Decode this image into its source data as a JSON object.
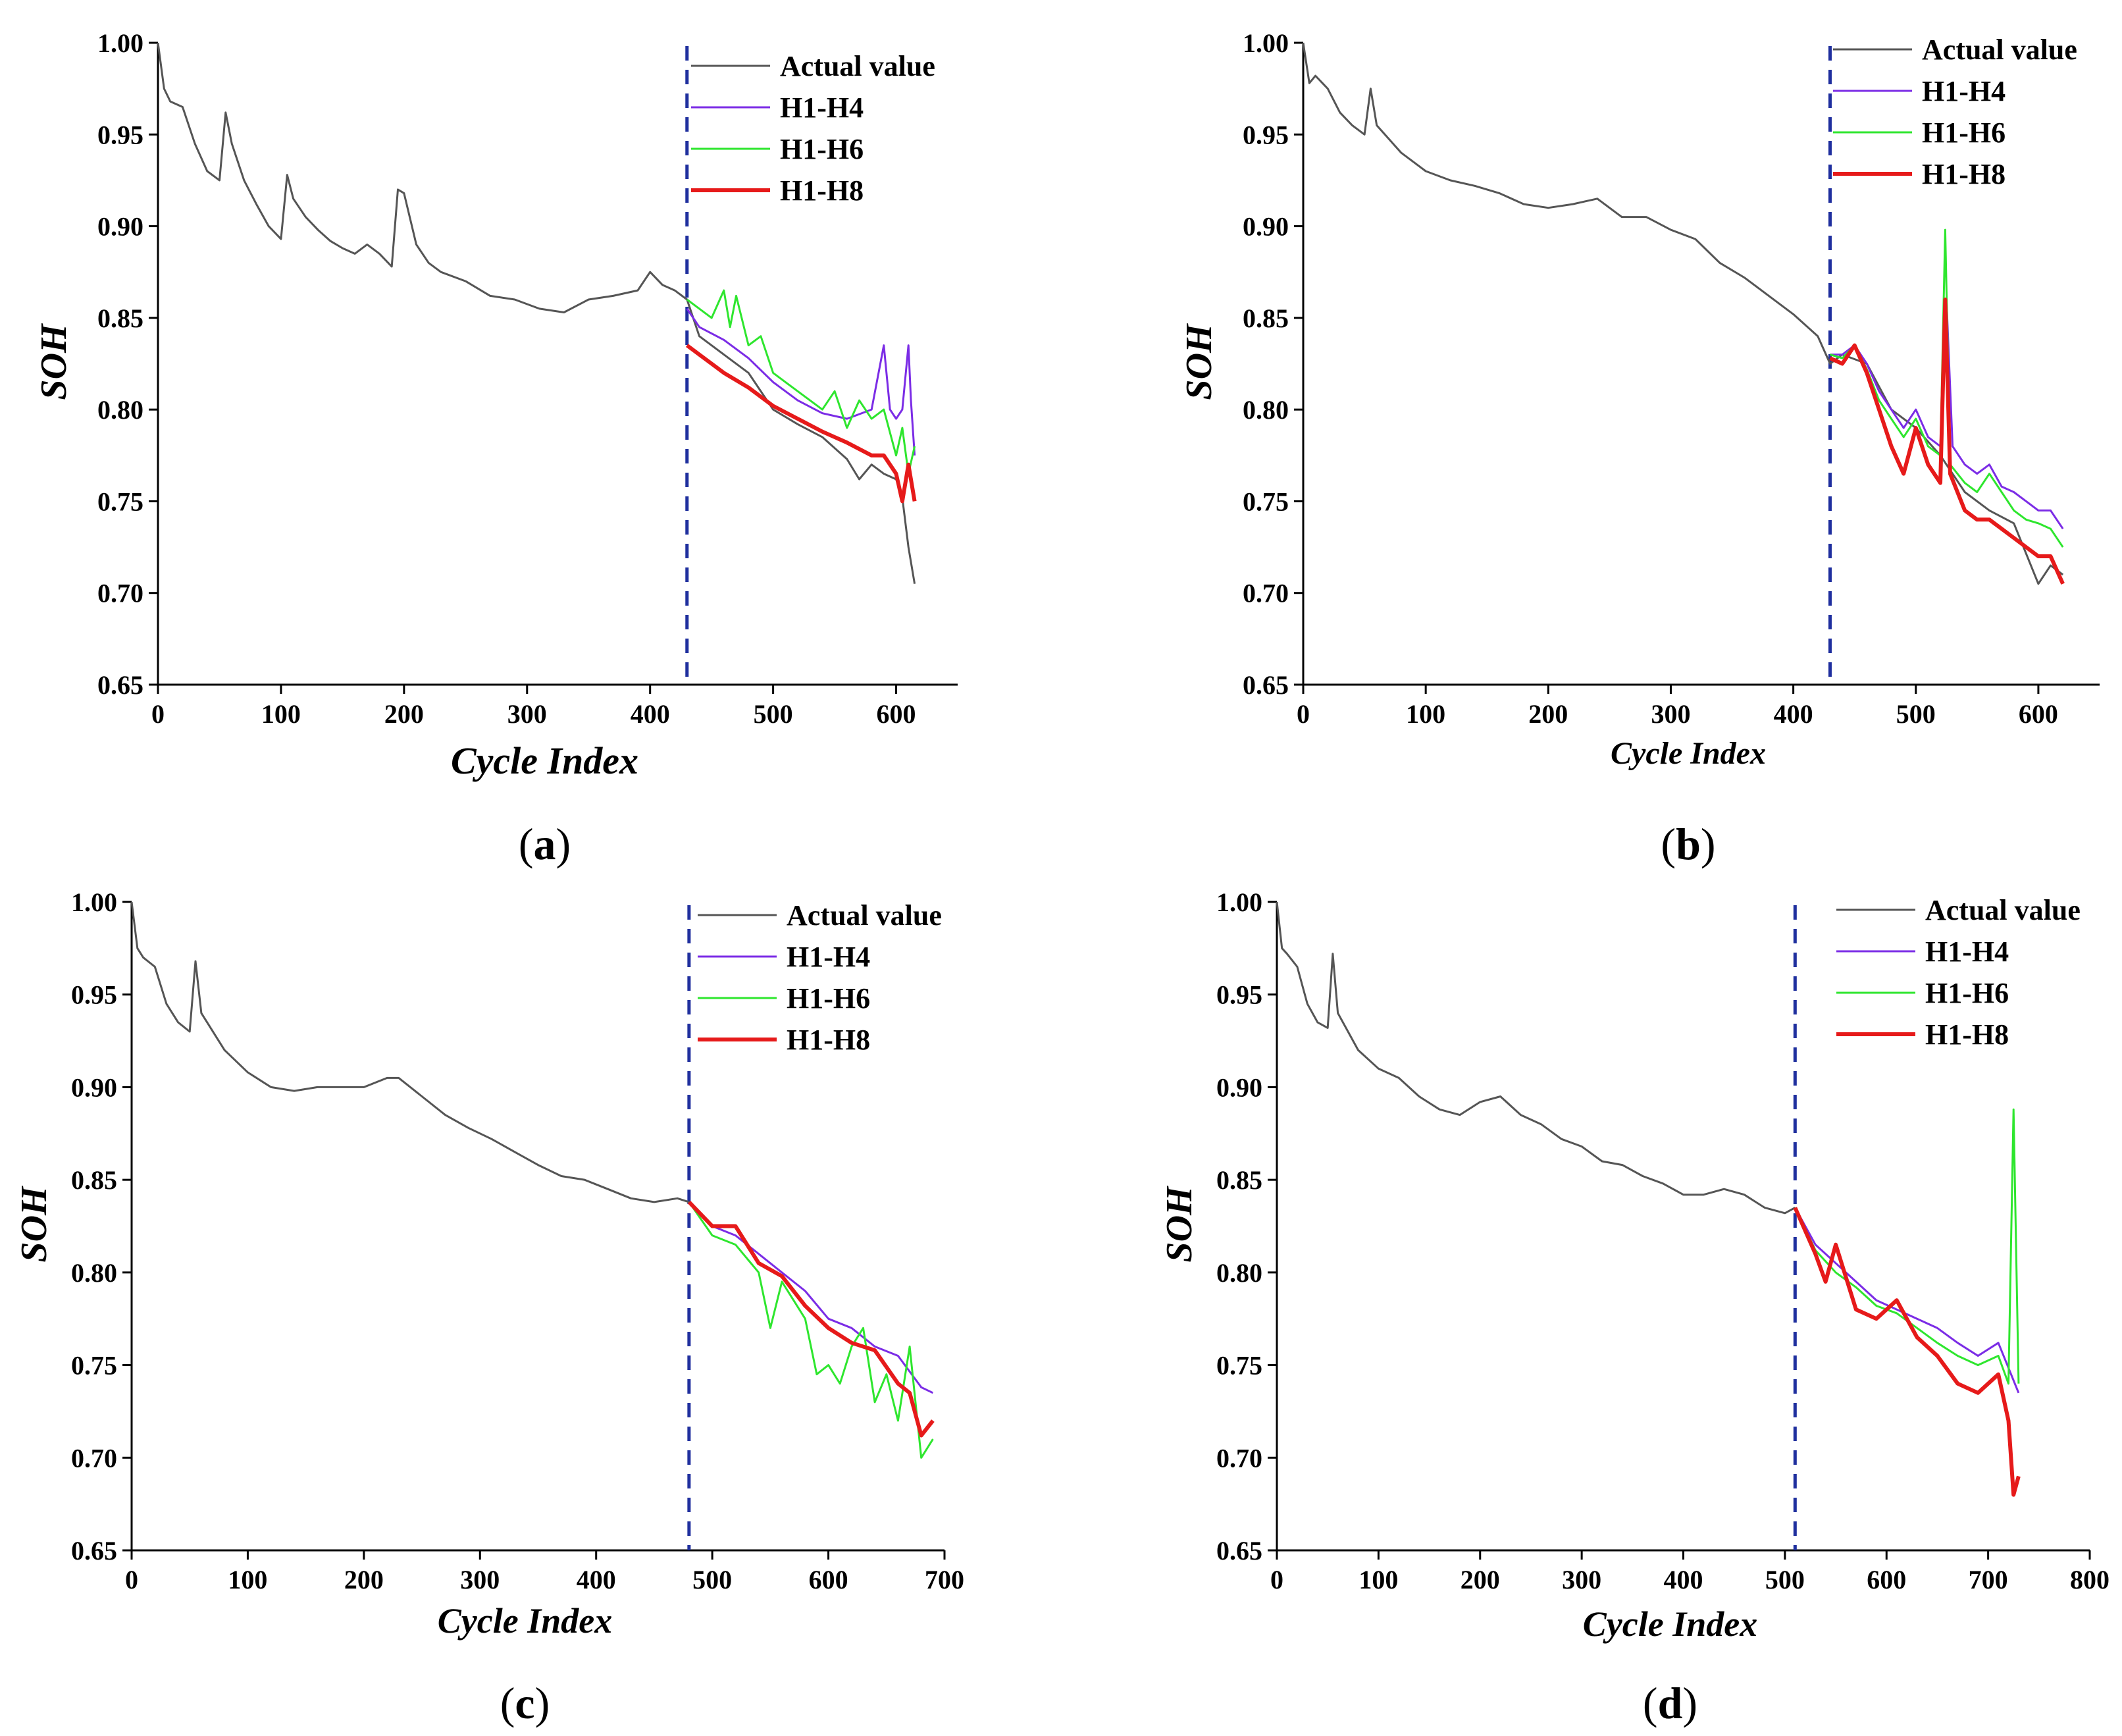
{
  "colors": {
    "actual": "#555555",
    "h1_h4": "#7B2CE6",
    "h1_h6": "#2EE62E",
    "h1_h8": "#E61A1A",
    "split_line": "#1F2F9E",
    "axis": "#000000"
  },
  "chart_data": [
    {
      "id": "a",
      "type": "line",
      "caption_letter": "a",
      "xlabel": "Cycle Index",
      "ylabel": "SOH",
      "xlim": [
        0,
        650
      ],
      "ylim": [
        0.65,
        1.0
      ],
      "xticks": [
        0,
        100,
        200,
        300,
        400,
        500,
        600
      ],
      "xtick_labels": [
        "0",
        "100",
        "200",
        "300",
        "400",
        "500",
        "600"
      ],
      "yticks": [
        0.65,
        0.7,
        0.75,
        0.8,
        0.85,
        0.9,
        0.95,
        1.0
      ],
      "ytick_labels": [
        "0.65",
        "0.70",
        "0.75",
        "0.80",
        "0.85",
        "0.90",
        "0.95",
        "1.00"
      ],
      "split_x": 430,
      "series": [
        {
          "name": "Actual value",
          "x": [
            0,
            5,
            10,
            20,
            30,
            40,
            50,
            55,
            60,
            70,
            80,
            90,
            100,
            105,
            110,
            120,
            130,
            140,
            150,
            160,
            170,
            180,
            190,
            195,
            200,
            210,
            220,
            230,
            250,
            270,
            290,
            310,
            330,
            350,
            370,
            390,
            400,
            410,
            420,
            430,
            440,
            460,
            480,
            500,
            520,
            540,
            560,
            570,
            580,
            590,
            600,
            605,
            610,
            615
          ],
          "y": [
            1.0,
            0.975,
            0.968,
            0.965,
            0.945,
            0.93,
            0.925,
            0.962,
            0.945,
            0.925,
            0.912,
            0.9,
            0.893,
            0.928,
            0.915,
            0.905,
            0.898,
            0.892,
            0.888,
            0.885,
            0.89,
            0.885,
            0.878,
            0.92,
            0.918,
            0.89,
            0.88,
            0.875,
            0.87,
            0.862,
            0.86,
            0.855,
            0.853,
            0.86,
            0.862,
            0.865,
            0.875,
            0.868,
            0.865,
            0.86,
            0.84,
            0.83,
            0.82,
            0.8,
            0.792,
            0.785,
            0.773,
            0.762,
            0.77,
            0.765,
            0.762,
            0.752,
            0.725,
            0.705
          ]
        },
        {
          "name": "H1-H4",
          "x": [
            430,
            440,
            460,
            480,
            500,
            520,
            540,
            560,
            580,
            590,
            595,
            600,
            605,
            610,
            612,
            615
          ],
          "y": [
            0.855,
            0.845,
            0.838,
            0.828,
            0.815,
            0.805,
            0.798,
            0.795,
            0.8,
            0.835,
            0.8,
            0.795,
            0.8,
            0.835,
            0.805,
            0.775
          ]
        },
        {
          "name": "H1-H6",
          "x": [
            430,
            440,
            450,
            460,
            465,
            470,
            480,
            490,
            500,
            510,
            520,
            530,
            540,
            550,
            560,
            570,
            580,
            590,
            600,
            605,
            610,
            615
          ],
          "y": [
            0.86,
            0.855,
            0.85,
            0.865,
            0.845,
            0.862,
            0.835,
            0.84,
            0.82,
            0.815,
            0.81,
            0.805,
            0.8,
            0.81,
            0.79,
            0.805,
            0.795,
            0.8,
            0.775,
            0.79,
            0.765,
            0.78
          ]
        },
        {
          "name": "H1-H8",
          "x": [
            430,
            440,
            450,
            460,
            480,
            500,
            520,
            540,
            560,
            580,
            590,
            600,
            605,
            610,
            615
          ],
          "y": [
            0.835,
            0.83,
            0.825,
            0.82,
            0.812,
            0.802,
            0.795,
            0.788,
            0.782,
            0.775,
            0.775,
            0.765,
            0.75,
            0.77,
            0.75
          ]
        }
      ],
      "legend_labels": [
        "Actual value",
        "H1-H4",
        "H1-H6",
        "H1-H8"
      ]
    },
    {
      "id": "b",
      "type": "line",
      "caption_letter": "b",
      "xlabel": "Cycle Index",
      "ylabel": "SOH",
      "xlim": [
        0,
        650
      ],
      "ylim": [
        0.65,
        1.0
      ],
      "xticks": [
        0,
        100,
        200,
        300,
        400,
        500,
        600
      ],
      "xtick_labels": [
        "0",
        "100",
        "200",
        "300",
        "400",
        "500",
        "600"
      ],
      "yticks": [
        0.65,
        0.7,
        0.75,
        0.8,
        0.85,
        0.9,
        0.95,
        1.0
      ],
      "ytick_labels": [
        "0.65",
        "0.70",
        "0.75",
        "0.80",
        "0.85",
        "0.90",
        "0.95",
        "1.00"
      ],
      "split_x": 430,
      "series": [
        {
          "name": "Actual value",
          "x": [
            0,
            5,
            10,
            20,
            30,
            40,
            50,
            55,
            60,
            80,
            100,
            120,
            140,
            160,
            180,
            200,
            220,
            240,
            260,
            280,
            300,
            320,
            340,
            360,
            380,
            400,
            420,
            430,
            440,
            460,
            480,
            500,
            520,
            540,
            560,
            580,
            600,
            610,
            620
          ],
          "y": [
            1.0,
            0.978,
            0.982,
            0.975,
            0.962,
            0.955,
            0.95,
            0.975,
            0.955,
            0.94,
            0.93,
            0.925,
            0.922,
            0.918,
            0.912,
            0.91,
            0.912,
            0.915,
            0.905,
            0.905,
            0.898,
            0.893,
            0.88,
            0.872,
            0.862,
            0.852,
            0.84,
            0.825,
            0.83,
            0.825,
            0.8,
            0.79,
            0.775,
            0.755,
            0.745,
            0.738,
            0.705,
            0.715,
            0.71
          ]
        },
        {
          "name": "H1-H4",
          "x": [
            430,
            440,
            450,
            460,
            470,
            480,
            490,
            500,
            510,
            520,
            525,
            530,
            540,
            550,
            560,
            570,
            580,
            590,
            600,
            610,
            620
          ],
          "y": [
            0.83,
            0.83,
            0.835,
            0.825,
            0.81,
            0.8,
            0.79,
            0.8,
            0.785,
            0.78,
            0.86,
            0.78,
            0.77,
            0.765,
            0.77,
            0.758,
            0.755,
            0.75,
            0.745,
            0.745,
            0.735
          ]
        },
        {
          "name": "H1-H6",
          "x": [
            430,
            440,
            450,
            460,
            470,
            480,
            490,
            500,
            510,
            520,
            524,
            528,
            540,
            550,
            560,
            570,
            580,
            590,
            600,
            610,
            620
          ],
          "y": [
            0.83,
            0.828,
            0.835,
            0.822,
            0.805,
            0.795,
            0.785,
            0.795,
            0.78,
            0.775,
            0.898,
            0.77,
            0.76,
            0.755,
            0.765,
            0.755,
            0.745,
            0.74,
            0.738,
            0.735,
            0.725
          ]
        },
        {
          "name": "H1-H8",
          "x": [
            430,
            440,
            450,
            460,
            470,
            480,
            490,
            500,
            510,
            520,
            524,
            528,
            540,
            550,
            560,
            570,
            580,
            590,
            600,
            610,
            620
          ],
          "y": [
            0.828,
            0.825,
            0.835,
            0.82,
            0.8,
            0.78,
            0.765,
            0.79,
            0.77,
            0.76,
            0.86,
            0.765,
            0.745,
            0.74,
            0.74,
            0.735,
            0.73,
            0.725,
            0.72,
            0.72,
            0.705
          ]
        }
      ],
      "legend_labels": [
        "Actual value",
        "H1-H4",
        "H1-H6",
        "H1-H8"
      ]
    },
    {
      "id": "c",
      "type": "line",
      "caption_letter": "c",
      "xlabel": "Cycle Index",
      "ylabel": "SOH",
      "xlim": [
        0,
        700
      ],
      "ylim": [
        0.65,
        1.0
      ],
      "xticks": [
        0,
        100,
        200,
        300,
        400,
        500,
        600,
        700
      ],
      "xtick_labels": [
        "0",
        "100",
        "200",
        "300",
        "400",
        "500",
        "600",
        "700"
      ],
      "yticks": [
        0.65,
        0.7,
        0.75,
        0.8,
        0.85,
        0.9,
        0.95,
        1.0
      ],
      "ytick_labels": [
        "0.65",
        "0.70",
        "0.75",
        "0.80",
        "0.85",
        "0.90",
        "0.95",
        "1.00"
      ],
      "split_x": 480,
      "series": [
        {
          "name": "Actual value",
          "x": [
            0,
            5,
            10,
            20,
            30,
            40,
            50,
            55,
            60,
            80,
            100,
            120,
            140,
            160,
            180,
            200,
            220,
            230,
            250,
            270,
            290,
            310,
            330,
            350,
            370,
            390,
            410,
            430,
            450,
            470,
            480
          ],
          "y": [
            1.0,
            0.975,
            0.97,
            0.965,
            0.945,
            0.935,
            0.93,
            0.968,
            0.94,
            0.92,
            0.908,
            0.9,
            0.898,
            0.9,
            0.9,
            0.9,
            0.905,
            0.905,
            0.895,
            0.885,
            0.878,
            0.872,
            0.865,
            0.858,
            0.852,
            0.85,
            0.845,
            0.84,
            0.838,
            0.84,
            0.838
          ]
        },
        {
          "name": "H1-H4",
          "x": [
            480,
            500,
            520,
            540,
            560,
            580,
            600,
            620,
            640,
            660,
            680,
            690
          ],
          "y": [
            0.838,
            0.825,
            0.82,
            0.81,
            0.8,
            0.79,
            0.775,
            0.77,
            0.76,
            0.755,
            0.738,
            0.735
          ]
        },
        {
          "name": "H1-H6",
          "x": [
            480,
            500,
            520,
            540,
            550,
            560,
            580,
            590,
            600,
            610,
            620,
            630,
            640,
            650,
            660,
            670,
            680,
            690
          ],
          "y": [
            0.838,
            0.82,
            0.815,
            0.8,
            0.77,
            0.795,
            0.775,
            0.745,
            0.75,
            0.74,
            0.76,
            0.77,
            0.73,
            0.745,
            0.72,
            0.76,
            0.7,
            0.71
          ]
        },
        {
          "name": "H1-H8",
          "x": [
            480,
            500,
            520,
            540,
            560,
            580,
            600,
            620,
            640,
            660,
            670,
            680,
            690
          ],
          "y": [
            0.838,
            0.825,
            0.825,
            0.805,
            0.798,
            0.782,
            0.77,
            0.762,
            0.758,
            0.74,
            0.735,
            0.712,
            0.72
          ]
        }
      ],
      "legend_labels": [
        "Actual value",
        "H1-H4",
        "H1-H6",
        "H1-H8"
      ]
    },
    {
      "id": "d",
      "type": "line",
      "caption_letter": "d",
      "xlabel": "Cycle Index",
      "ylabel": "SOH",
      "xlim": [
        0,
        800
      ],
      "ylim": [
        0.65,
        1.0
      ],
      "xticks": [
        0,
        100,
        200,
        300,
        400,
        500,
        600,
        700,
        800
      ],
      "xtick_labels": [
        "0",
        "100",
        "200",
        "300",
        "400",
        "500",
        "600",
        "700",
        "800"
      ],
      "yticks": [
        0.65,
        0.7,
        0.75,
        0.8,
        0.85,
        0.9,
        0.95,
        1.0
      ],
      "ytick_labels": [
        "0.65",
        "0.70",
        "0.75",
        "0.80",
        "0.85",
        "0.90",
        "0.95",
        "1.00"
      ],
      "split_x": 510,
      "series": [
        {
          "name": "Actual value",
          "x": [
            0,
            5,
            10,
            20,
            30,
            40,
            50,
            55,
            60,
            80,
            100,
            120,
            140,
            160,
            180,
            200,
            220,
            240,
            260,
            280,
            300,
            320,
            340,
            360,
            380,
            400,
            420,
            440,
            460,
            480,
            500,
            510
          ],
          "y": [
            1.0,
            0.975,
            0.972,
            0.965,
            0.945,
            0.935,
            0.932,
            0.972,
            0.94,
            0.92,
            0.91,
            0.905,
            0.895,
            0.888,
            0.885,
            0.892,
            0.895,
            0.885,
            0.88,
            0.872,
            0.868,
            0.86,
            0.858,
            0.852,
            0.848,
            0.842,
            0.842,
            0.845,
            0.842,
            0.835,
            0.832,
            0.835
          ]
        },
        {
          "name": "H1-H4",
          "x": [
            510,
            530,
            550,
            570,
            590,
            610,
            630,
            650,
            670,
            690,
            710,
            730
          ],
          "y": [
            0.835,
            0.815,
            0.805,
            0.795,
            0.785,
            0.78,
            0.775,
            0.77,
            0.762,
            0.755,
            0.762,
            0.735
          ]
        },
        {
          "name": "H1-H6",
          "x": [
            510,
            530,
            550,
            570,
            590,
            610,
            630,
            650,
            670,
            690,
            710,
            720,
            725,
            730
          ],
          "y": [
            0.835,
            0.812,
            0.8,
            0.792,
            0.782,
            0.778,
            0.77,
            0.762,
            0.755,
            0.75,
            0.755,
            0.74,
            0.888,
            0.74
          ]
        },
        {
          "name": "H1-H8",
          "x": [
            510,
            530,
            540,
            550,
            570,
            590,
            610,
            630,
            650,
            670,
            690,
            710,
            720,
            725,
            730
          ],
          "y": [
            0.835,
            0.81,
            0.795,
            0.815,
            0.78,
            0.775,
            0.785,
            0.765,
            0.755,
            0.74,
            0.735,
            0.745,
            0.72,
            0.68,
            0.69
          ]
        }
      ],
      "legend_labels": [
        "Actual value",
        "H1-H4",
        "H1-H6",
        "H1-H8"
      ]
    }
  ]
}
